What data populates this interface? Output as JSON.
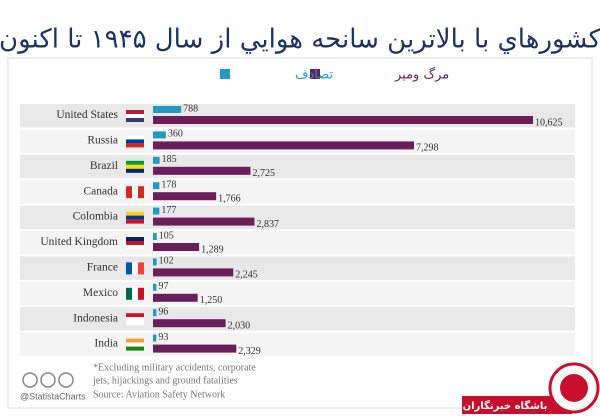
{
  "chart_data": {
    "type": "bar",
    "title": "كشورهاي با بالاترين سانحه هوايي از سال ۱۹۴۵ تا اكنون",
    "categories": [
      "United States",
      "Russia",
      "Brazil",
      "Canada",
      "Colombia",
      "United Kingdom",
      "France",
      "Mexico",
      "Indonesia",
      "India"
    ],
    "series": [
      {
        "name": "تصادف",
        "color": "#1f9bc4",
        "values": [
          788,
          360,
          185,
          178,
          177,
          105,
          102,
          97,
          96,
          93
        ]
      },
      {
        "name": "مرگ ومير",
        "color": "#6b1e5a",
        "values": [
          10625,
          7298,
          2725,
          1766,
          2837,
          1289,
          2245,
          1250,
          2030,
          2329
        ],
        "value_labels": [
          "10,625",
          "7,298",
          "2,725",
          "1,766",
          "2,837",
          "1,289",
          "2,245",
          "1,250",
          "2,030",
          "2,329"
        ]
      }
    ],
    "notes": [
      "*Excluding military accidents, corporate",
      "jets, hijackings and ground fatalities",
      "Source: Aviation Safety Network"
    ],
    "credit": "@StatistaCharts",
    "watermark": "باشگاه خبرنگاران"
  }
}
